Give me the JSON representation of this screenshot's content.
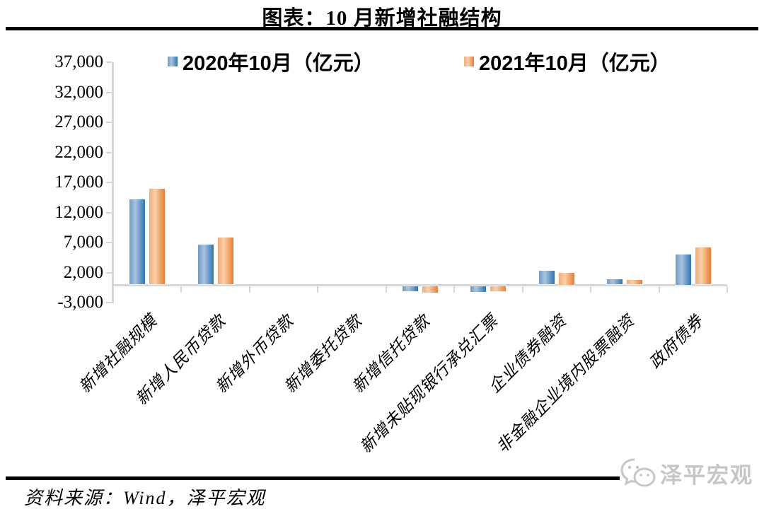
{
  "page": {
    "source_note": "资料来源：Wind，泽平宏观",
    "watermark_brand": "泽平宏观",
    "watermark_icon": "wechat-icon",
    "rule_color": "#000000"
  },
  "chart_data": {
    "type": "bar",
    "title": "图表：10 月新增社融结构",
    "categories": [
      "新增社融规模",
      "新增人民币贷款",
      "新增外币贷款",
      "新增委托贷款",
      "新增信托贷款",
      "新增未贴现银行承兑汇票",
      "企业债券融资",
      "非金融企业境内股票融资",
      "政府债券"
    ],
    "series": [
      {
        "name": "2020年10月（亿元）",
        "color": "#2e75b6",
        "gradient": [
          "#6f9cc6",
          "#a9c3de",
          "#2e75b6"
        ],
        "values": [
          14200,
          6700,
          0,
          0,
          -900,
          -1000,
          2300,
          900,
          5000
        ]
      },
      {
        "name": "2021年10月（亿元）",
        "color": "#ed7d31",
        "gradient": [
          "#f2ab76",
          "#f9d0a9",
          "#ec7c2f"
        ],
        "values": [
          15900,
          7800,
          0,
          0,
          -1100,
          -850,
          2000,
          800,
          6200
        ]
      }
    ],
    "ylim": [
      -3000,
      37000
    ],
    "ytick_step": 5000,
    "ytick_labels": [
      "37,000",
      "32,000",
      "27,000",
      "22,000",
      "17,000",
      "12,000",
      "7,000",
      "2,000",
      "-3,000"
    ],
    "grid": false,
    "legend_position": "top",
    "axis_color": "#d6d6d6",
    "unit": "亿元"
  }
}
